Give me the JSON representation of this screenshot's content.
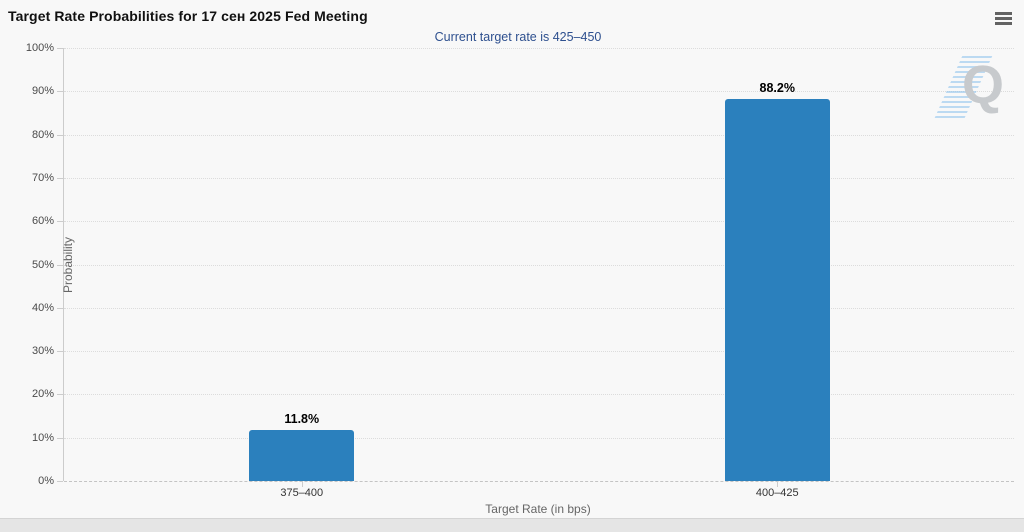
{
  "header": {
    "title": "Target Rate Probabilities for 17 сен 2025 Fed Meeting",
    "menu_icon": "hamburger-menu-icon"
  },
  "watermark": {
    "letter": "Q"
  },
  "colors": {
    "bar": "#2b80bd",
    "subtitle": "#2e508f",
    "title": "#111111",
    "axis_text": "#666666"
  },
  "chart_data": {
    "type": "bar",
    "title": "Target Rate Probabilities for 17 сен 2025 Fed Meeting",
    "subtitle": "Current target rate is 425–450",
    "categories": [
      "375–400",
      "400–425"
    ],
    "values": [
      11.8,
      88.2
    ],
    "data_labels": [
      "11.8%",
      "88.2%"
    ],
    "xlabel": "Target Rate (in bps)",
    "ylabel": "Probability",
    "ylim": [
      0,
      100
    ],
    "ytick_step": 10,
    "ytick_labels": [
      "0%",
      "10%",
      "20%",
      "30%",
      "40%",
      "50%",
      "60%",
      "70%",
      "80%",
      "90%",
      "100%"
    ],
    "grid": true,
    "legend": "none"
  }
}
